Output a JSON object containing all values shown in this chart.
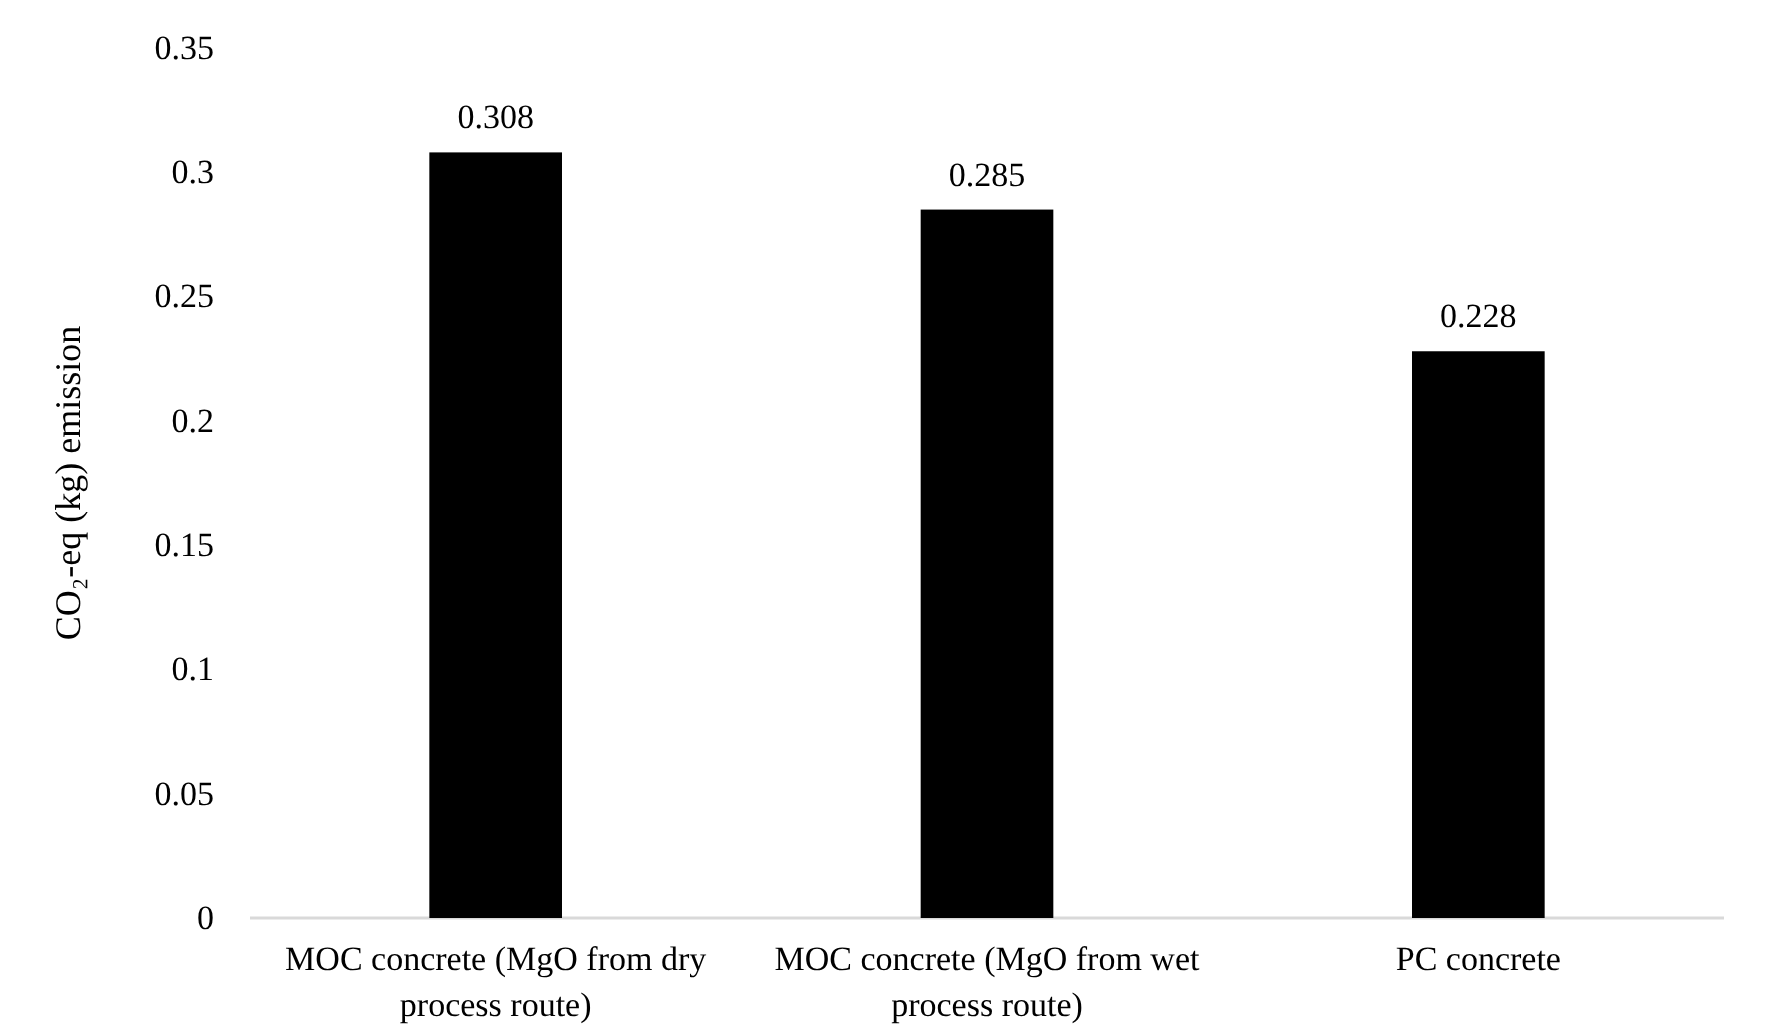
{
  "chart_data": {
    "type": "bar",
    "ylabel": "CO₂-eq (kg) emission",
    "categories": [
      "MOC concrete (MgO from dry process route)",
      "MOC concrete (MgO from wet process route)",
      "PC concrete"
    ],
    "values": [
      0.308,
      0.285,
      0.228
    ],
    "color": "#000000",
    "ylim": [
      0,
      0.35
    ],
    "yticks": [
      0,
      0.05,
      0.1,
      0.15,
      0.2,
      0.25,
      0.3,
      0.35
    ],
    "grid": false,
    "data_labels": true
  }
}
